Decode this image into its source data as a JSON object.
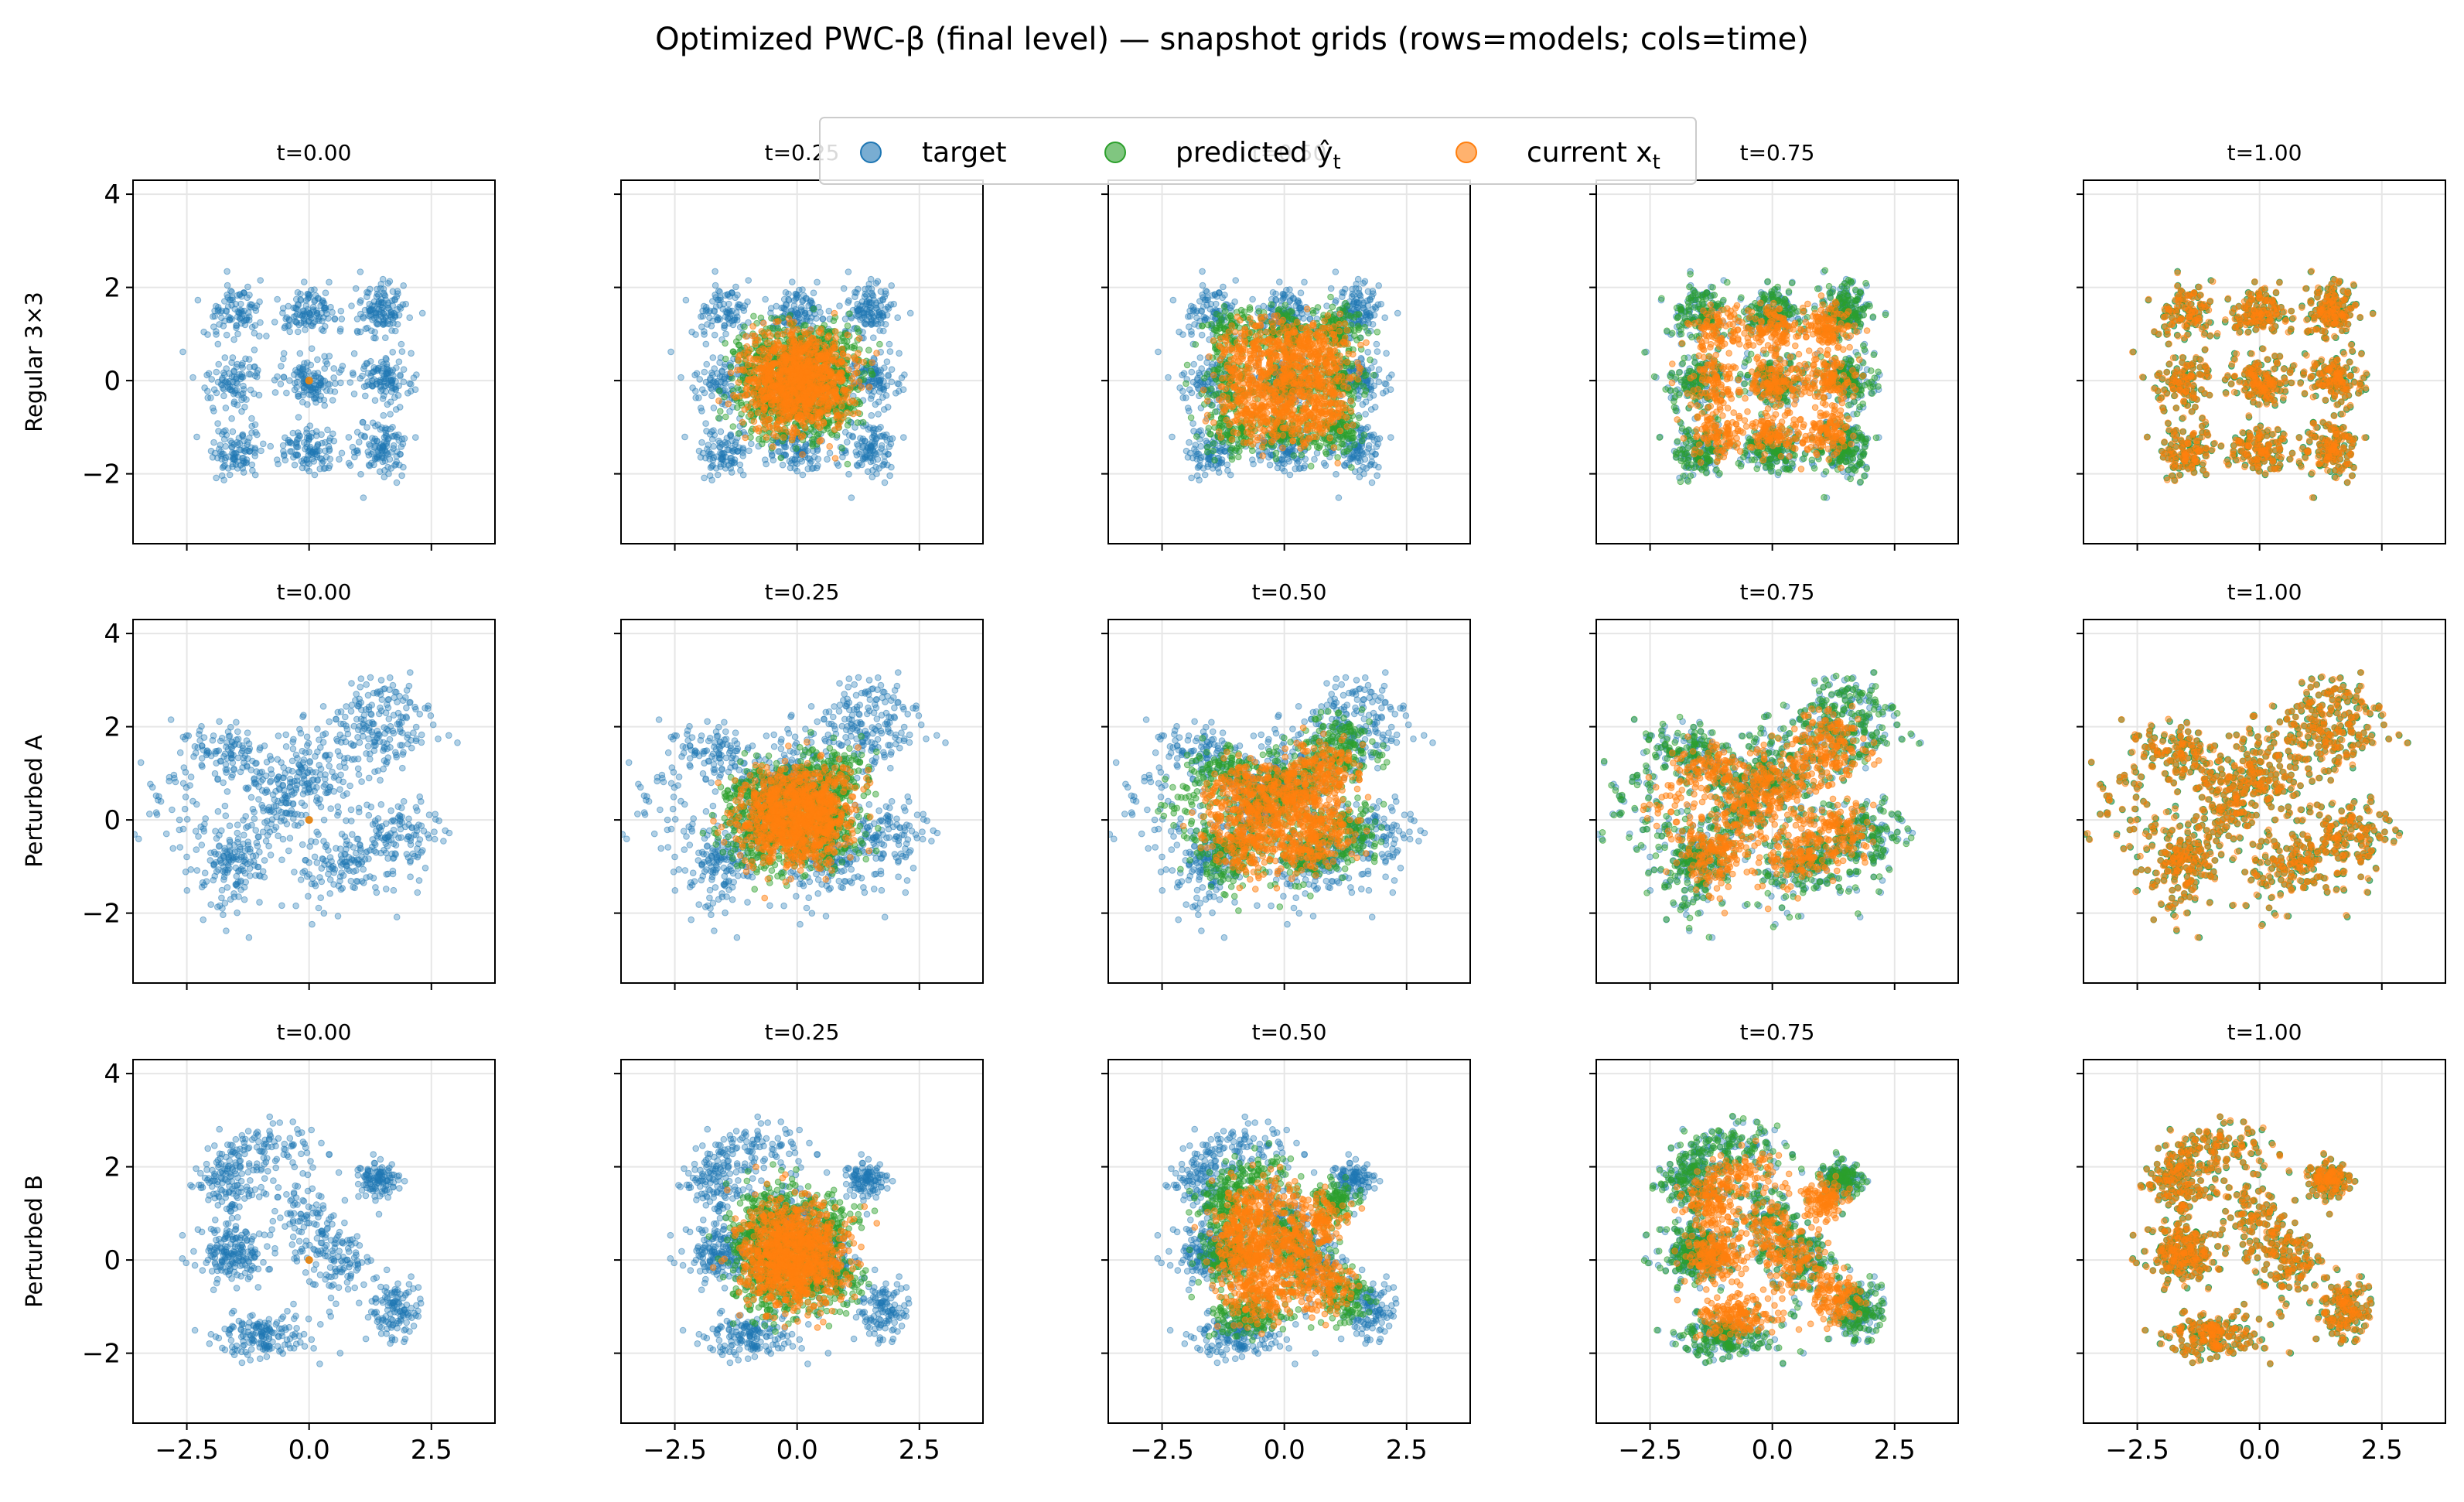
{
  "figure": {
    "title": "Optimized PWC-β (final level) — snapshot grids (rows=models; cols=time)"
  },
  "legend": {
    "placement": "top-center",
    "items": [
      {
        "label": "target",
        "color": "#1f77b4"
      },
      {
        "label": "predicted ŷ",
        "subscript": "t",
        "color": "#2ca02c"
      },
      {
        "label": "current x",
        "subscript": "t",
        "color": "#ff7f0e"
      }
    ]
  },
  "chart_data": {
    "type": "scatter",
    "grid": true,
    "xlim": [
      -3.6,
      3.8
    ],
    "ylim": [
      -3.5,
      4.3
    ],
    "xticks": [
      -2.5,
      0.0,
      2.5
    ],
    "xtick_labels": [
      "−2.5",
      "0.0",
      "2.5"
    ],
    "yticks": [
      -2,
      0,
      2,
      4
    ],
    "ytick_labels": [
      "−2",
      "0",
      "2",
      "4"
    ],
    "columns": [
      "t=0.00",
      "t=0.25",
      "t=0.50",
      "t=0.75",
      "t=1.00"
    ],
    "times": [
      0.0,
      0.25,
      0.5,
      0.75,
      1.0
    ],
    "rows": [
      {
        "name": "Regular 3×3",
        "clusters": [
          {
            "x": -1.5,
            "y": 1.5,
            "sx": 0.28,
            "sy": 0.28,
            "w": 1
          },
          {
            "x": 0.0,
            "y": 1.5,
            "sx": 0.28,
            "sy": 0.28,
            "w": 1
          },
          {
            "x": 1.5,
            "y": 1.5,
            "sx": 0.28,
            "sy": 0.28,
            "w": 1
          },
          {
            "x": -1.5,
            "y": 0.0,
            "sx": 0.28,
            "sy": 0.28,
            "w": 1
          },
          {
            "x": 0.0,
            "y": 0.0,
            "sx": 0.28,
            "sy": 0.28,
            "w": 1
          },
          {
            "x": 1.5,
            "y": 0.0,
            "sx": 0.28,
            "sy": 0.28,
            "w": 1
          },
          {
            "x": -1.5,
            "y": -1.5,
            "sx": 0.28,
            "sy": 0.28,
            "w": 1
          },
          {
            "x": 0.0,
            "y": -1.5,
            "sx": 0.28,
            "sy": 0.28,
            "w": 1
          },
          {
            "x": 1.5,
            "y": -1.5,
            "sx": 0.28,
            "sy": 0.28,
            "w": 1
          }
        ]
      },
      {
        "name": "Perturbed A",
        "clusters": [
          {
            "x": -1.7,
            "y": 1.4,
            "sx": 0.45,
            "sy": 0.35,
            "w": 0.8
          },
          {
            "x": 0.0,
            "y": 0.9,
            "sx": 0.5,
            "sy": 0.55,
            "w": 1.4
          },
          {
            "x": 1.5,
            "y": 2.1,
            "sx": 0.5,
            "sy": 0.5,
            "w": 1.2
          },
          {
            "x": -1.6,
            "y": -0.9,
            "sx": 0.4,
            "sy": 0.45,
            "w": 1.1
          },
          {
            "x": 0.7,
            "y": -1.0,
            "sx": 0.55,
            "sy": 0.4,
            "w": 1.2
          },
          {
            "x": 1.8,
            "y": -0.3,
            "sx": 0.45,
            "sy": 0.4,
            "w": 0.9
          },
          {
            "x": -0.8,
            "y": 0.3,
            "sx": 0.4,
            "sy": 0.4,
            "w": 0.6
          },
          {
            "x": -2.8,
            "y": 0.2,
            "sx": 0.35,
            "sy": 0.5,
            "w": 0.4
          }
        ]
      },
      {
        "name": "Perturbed B",
        "clusters": [
          {
            "x": -1.5,
            "y": 1.8,
            "sx": 0.35,
            "sy": 0.45,
            "w": 1.2
          },
          {
            "x": -1.6,
            "y": 0.2,
            "sx": 0.35,
            "sy": 0.35,
            "w": 1.0
          },
          {
            "x": -1.0,
            "y": -1.6,
            "sx": 0.5,
            "sy": 0.25,
            "w": 1.1
          },
          {
            "x": 0.0,
            "y": 1.0,
            "sx": 0.3,
            "sy": 0.45,
            "w": 0.6
          },
          {
            "x": 0.6,
            "y": 0.0,
            "sx": 0.35,
            "sy": 0.35,
            "w": 0.7
          },
          {
            "x": 1.4,
            "y": 1.7,
            "sx": 0.22,
            "sy": 0.2,
            "w": 0.7
          },
          {
            "x": 1.8,
            "y": -1.1,
            "sx": 0.25,
            "sy": 0.3,
            "w": 0.8
          },
          {
            "x": -0.6,
            "y": 2.4,
            "sx": 0.35,
            "sy": 0.35,
            "w": 0.4
          }
        ]
      }
    ],
    "series": [
      {
        "name": "target",
        "color": "#1f77b4"
      },
      {
        "name": "predicted",
        "color": "#2ca02c"
      },
      {
        "name": "current",
        "color": "#ff7f0e"
      }
    ],
    "samples_per_panel": 1000,
    "initial_spread": 0.55
  }
}
